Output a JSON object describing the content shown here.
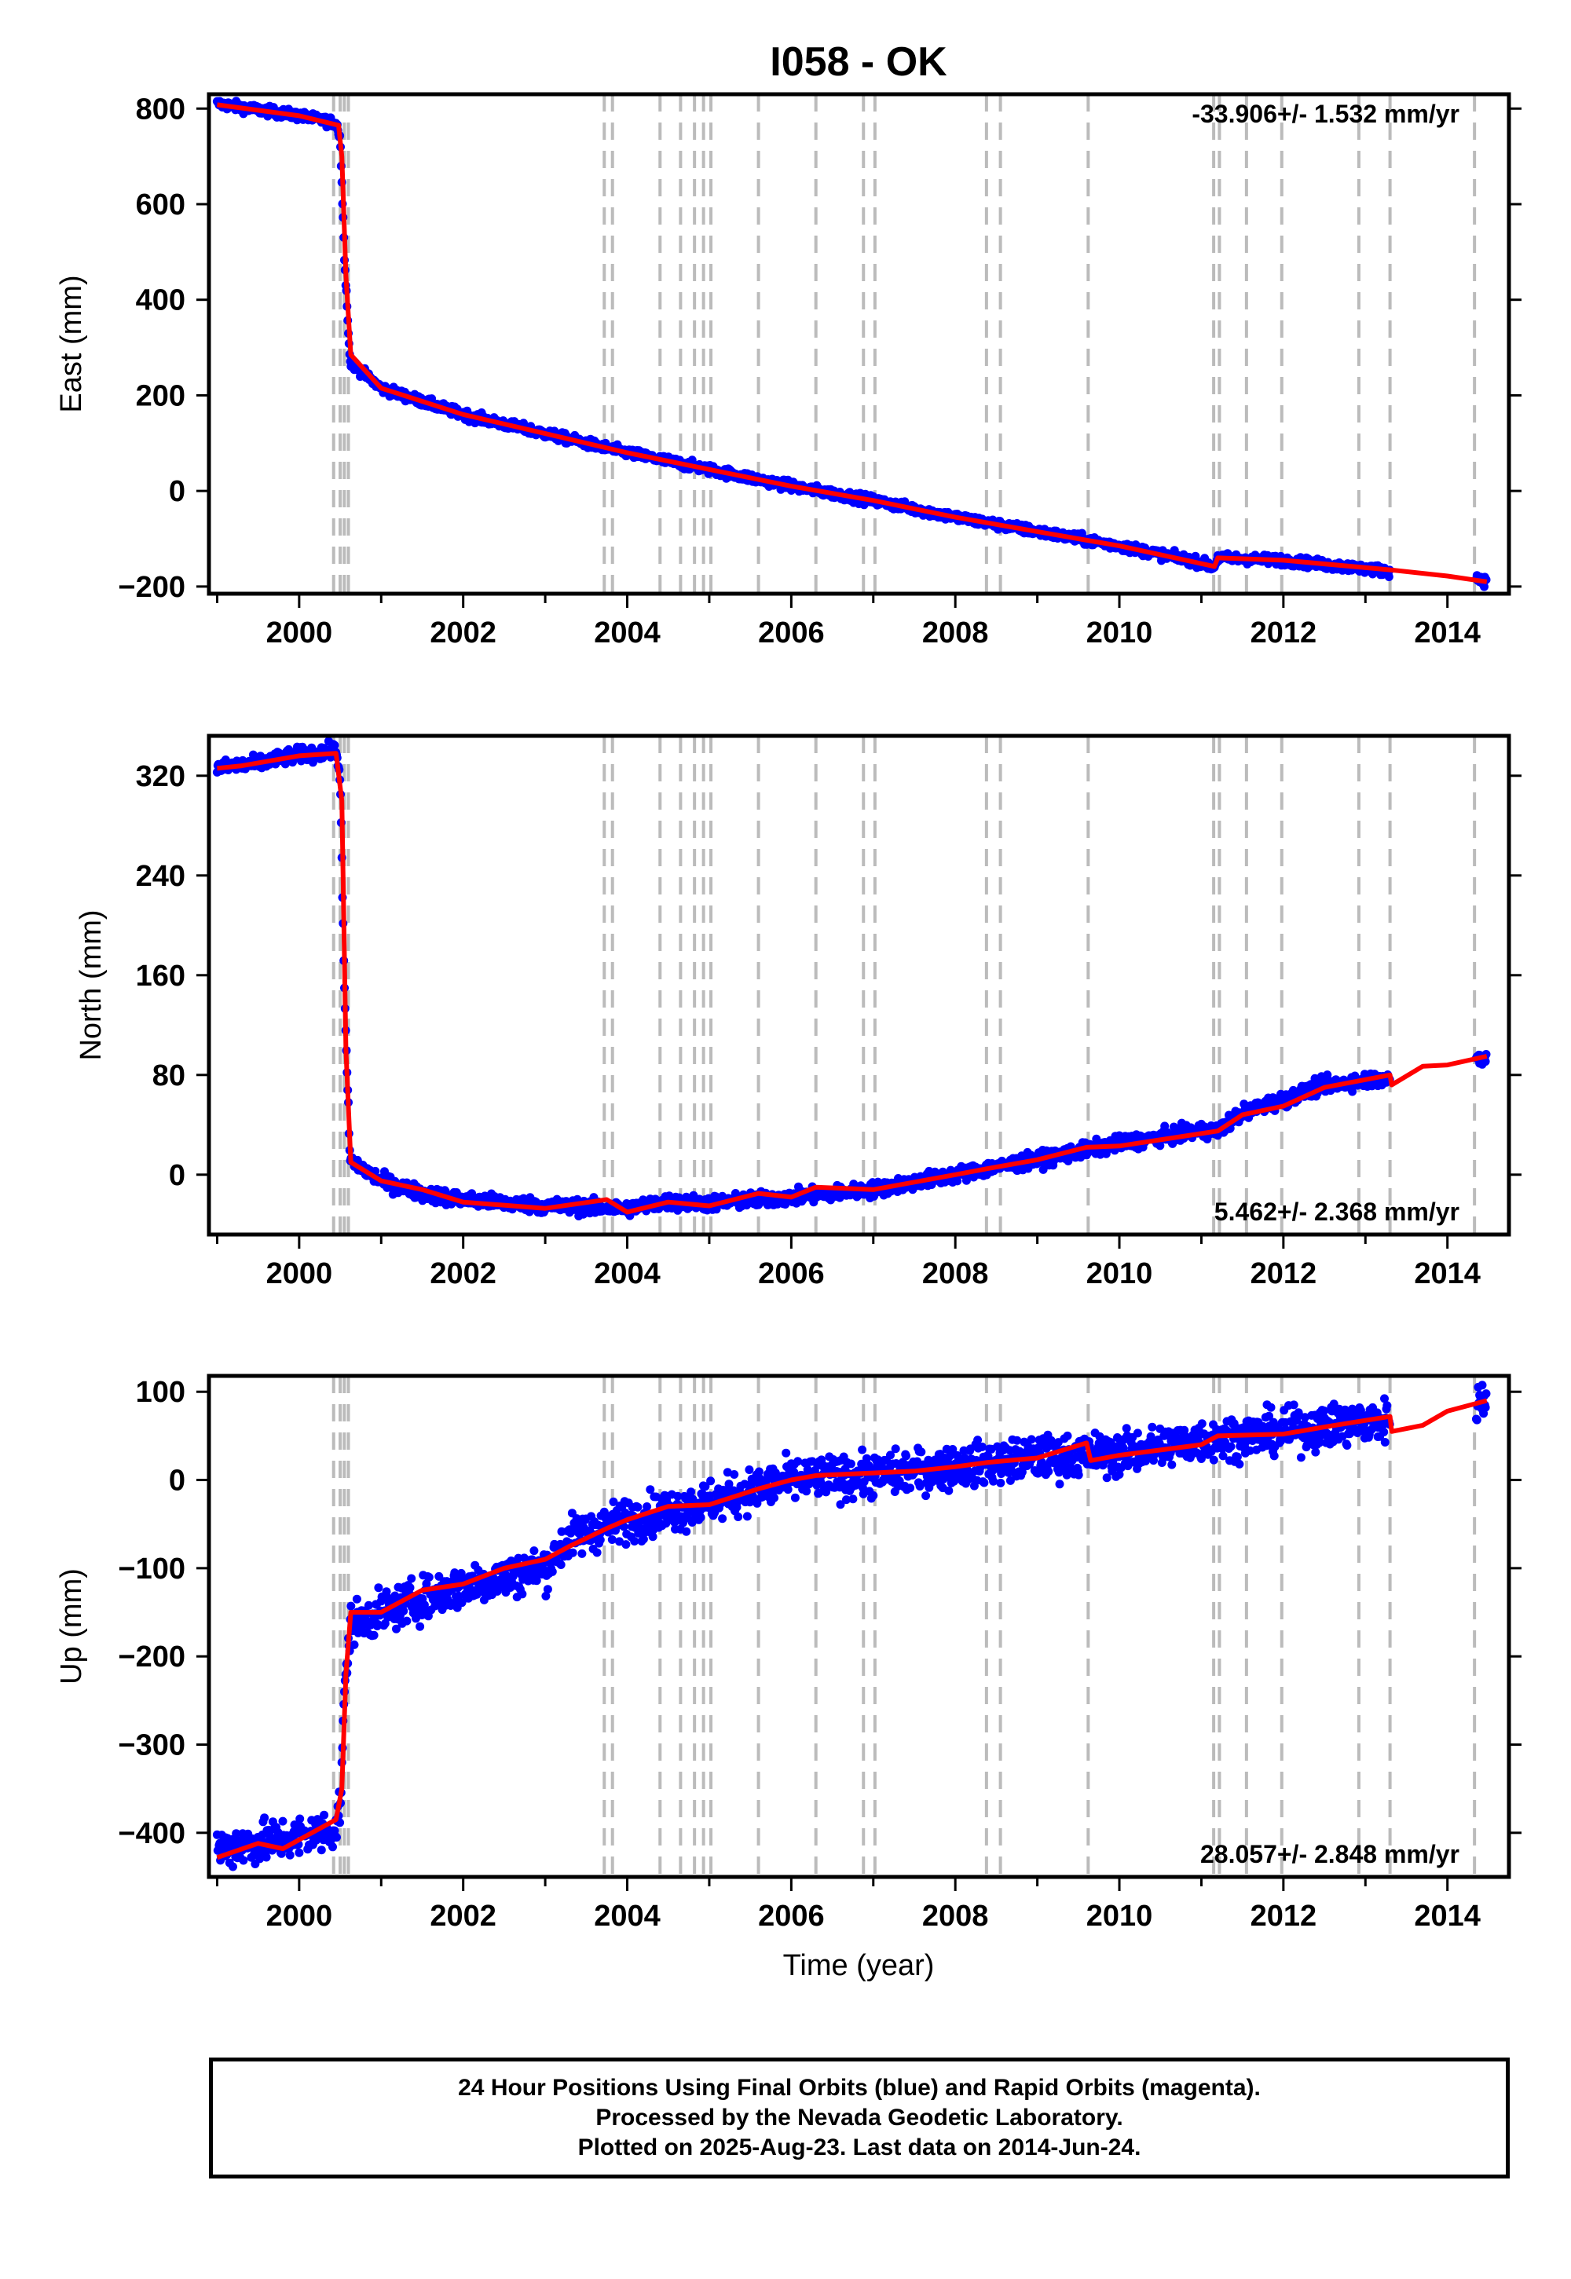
{
  "figure": {
    "title": "I058 - OK",
    "xlabel": "Time (year)",
    "caption": [
      "24 Hour Positions Using Final Orbits (blue) and Rapid Orbits (magenta).",
      "Processed by the Nevada Geodetic Laboratory.",
      "Plotted on 2025-Aug-23. Last data on 2014-Jun-24."
    ]
  },
  "colors": {
    "final_orbits": "#0000ff",
    "model": "#ff0000",
    "equipment_lines": "#bbbbbb",
    "axes": "#000000"
  },
  "chart_data": [
    {
      "type": "scatter",
      "component": "East",
      "ylabel": "East (mm)",
      "rate_label": "-33.906+/- 1.532 mm/yr",
      "rate_position": "top-right",
      "xlim": [
        1998.9,
        2014.75
      ],
      "ylim": [
        -215,
        830
      ],
      "xticks": [
        2000,
        2002,
        2004,
        2006,
        2008,
        2010,
        2012,
        2014
      ],
      "yticks": [
        -200,
        0,
        200,
        400,
        600,
        800
      ],
      "grid": false,
      "series": [
        {
          "kind": "observations",
          "color": "blue",
          "start": 1999.0,
          "end": 2014.48,
          "gaps": [
            [
              2013.3,
              2014.35
            ]
          ],
          "scatter_mm": 5,
          "points": [
            [
              1999.0,
              810
            ],
            [
              2000.0,
              785
            ],
            [
              2000.45,
              770
            ],
            [
              2000.5,
              740
            ],
            [
              2000.55,
              500
            ],
            [
              2000.62,
              270
            ],
            [
              2001.0,
              215
            ],
            [
              2002.0,
              160
            ],
            [
              2003.0,
              120
            ],
            [
              2004.0,
              80
            ],
            [
              2005.0,
              45
            ],
            [
              2006.0,
              10
            ],
            [
              2007.0,
              -20
            ],
            [
              2008.0,
              -55
            ],
            [
              2009.0,
              -85
            ],
            [
              2010.0,
              -115
            ],
            [
              2011.0,
              -150
            ],
            [
              2011.15,
              -160
            ],
            [
              2011.2,
              -140
            ],
            [
              2012.0,
              -145
            ],
            [
              2013.3,
              -168
            ],
            [
              2014.35,
              -183
            ],
            [
              2014.48,
              -190
            ]
          ]
        },
        {
          "kind": "model",
          "color": "red",
          "points": [
            [
              1999.0,
              808
            ],
            [
              2000.0,
              785
            ],
            [
              2000.48,
              765
            ],
            [
              2000.52,
              700
            ],
            [
              2000.57,
              450
            ],
            [
              2000.63,
              285
            ],
            [
              2001.0,
              215
            ],
            [
              2002.0,
              160
            ],
            [
              2003.0,
              120
            ],
            [
              2004.0,
              80
            ],
            [
              2005.0,
              45
            ],
            [
              2006.0,
              10
            ],
            [
              2007.0,
              -20
            ],
            [
              2008.0,
              -55
            ],
            [
              2009.0,
              -85
            ],
            [
              2010.0,
              -115
            ],
            [
              2011.16,
              -158
            ],
            [
              2011.2,
              -140
            ],
            [
              2012.0,
              -145
            ],
            [
              2013.3,
              -165
            ],
            [
              2014.0,
              -178
            ],
            [
              2014.48,
              -190
            ]
          ]
        }
      ]
    },
    {
      "type": "scatter",
      "component": "North",
      "ylabel": "North (mm)",
      "rate_label": "5.462+/- 2.368 mm/yr",
      "rate_position": "bottom-right",
      "xlim": [
        1998.9,
        2014.75
      ],
      "ylim": [
        -48,
        352
      ],
      "xticks": [
        2000,
        2002,
        2004,
        2006,
        2008,
        2010,
        2012,
        2014
      ],
      "yticks": [
        0,
        80,
        160,
        240,
        320
      ],
      "grid": false,
      "series": [
        {
          "kind": "observations",
          "color": "blue",
          "start": 1999.0,
          "end": 2014.48,
          "gaps": [
            [
              2013.3,
              2014.35
            ]
          ],
          "scatter_mm": 3,
          "points": [
            [
              1999.0,
              326
            ],
            [
              1999.5,
              330
            ],
            [
              2000.0,
              337
            ],
            [
              2000.45,
              340
            ],
            [
              2000.5,
              320
            ],
            [
              2000.55,
              150
            ],
            [
              2000.62,
              12
            ],
            [
              2001.0,
              -5
            ],
            [
              2001.5,
              -15
            ],
            [
              2002.0,
              -20
            ],
            [
              2003.0,
              -25
            ],
            [
              2004.0,
              -27
            ],
            [
              2004.5,
              -22
            ],
            [
              2005.0,
              -23
            ],
            [
              2006.0,
              -18
            ],
            [
              2007.0,
              -12
            ],
            [
              2008.0,
              0
            ],
            [
              2009.0,
              12
            ],
            [
              2010.0,
              25
            ],
            [
              2011.0,
              35
            ],
            [
              2011.2,
              35
            ],
            [
              2011.5,
              50
            ],
            [
              2012.0,
              60
            ],
            [
              2012.5,
              72
            ],
            [
              2013.3,
              78
            ],
            [
              2014.35,
              90
            ],
            [
              2014.48,
              95
            ]
          ]
        },
        {
          "kind": "model",
          "color": "red",
          "points": [
            [
              1999.0,
              326
            ],
            [
              1999.3,
              328
            ],
            [
              2000.0,
              336
            ],
            [
              2000.45,
              338
            ],
            [
              2000.52,
              300
            ],
            [
              2000.57,
              100
            ],
            [
              2000.63,
              10
            ],
            [
              2001.0,
              -5
            ],
            [
              2001.5,
              -12
            ],
            [
              2002.0,
              -22
            ],
            [
              2003.0,
              -27
            ],
            [
              2003.75,
              -20
            ],
            [
              2004.0,
              -30
            ],
            [
              2004.5,
              -22
            ],
            [
              2005.0,
              -25
            ],
            [
              2005.6,
              -15
            ],
            [
              2006.0,
              -18
            ],
            [
              2006.3,
              -10
            ],
            [
              2007.0,
              -12
            ],
            [
              2008.0,
              0
            ],
            [
              2008.4,
              5
            ],
            [
              2009.0,
              12
            ],
            [
              2009.6,
              22
            ],
            [
              2010.0,
              23
            ],
            [
              2011.2,
              35
            ],
            [
              2011.5,
              48
            ],
            [
              2012.0,
              55
            ],
            [
              2012.5,
              70
            ],
            [
              2013.3,
              80
            ],
            [
              2013.32,
              72
            ],
            [
              2013.7,
              87
            ],
            [
              2014.0,
              88
            ],
            [
              2014.48,
              95
            ]
          ]
        }
      ]
    },
    {
      "type": "scatter",
      "component": "Up",
      "ylabel": "Up (mm)",
      "rate_label": "28.057+/- 2.848 mm/yr",
      "rate_position": "bottom-right",
      "xlim": [
        1998.9,
        2014.75
      ],
      "ylim": [
        -450,
        118
      ],
      "xticks": [
        2000,
        2002,
        2004,
        2006,
        2008,
        2010,
        2012,
        2014
      ],
      "yticks": [
        -400,
        -300,
        -200,
        -100,
        0,
        100
      ],
      "grid": false,
      "series": [
        {
          "kind": "observations",
          "color": "blue",
          "start": 1999.0,
          "end": 2014.48,
          "gaps": [
            [
              2013.3,
              2014.35
            ]
          ],
          "scatter_mm": 12,
          "points": [
            [
              1999.0,
              -418
            ],
            [
              2000.0,
              -405
            ],
            [
              2000.45,
              -395
            ],
            [
              2000.5,
              -370
            ],
            [
              2000.55,
              -250
            ],
            [
              2000.62,
              -165
            ],
            [
              2001.0,
              -150
            ],
            [
              2002.0,
              -120
            ],
            [
              2003.0,
              -100
            ],
            [
              2003.3,
              -65
            ],
            [
              2004.0,
              -45
            ],
            [
              2005.0,
              -25
            ],
            [
              2006.0,
              0
            ],
            [
              2007.0,
              5
            ],
            [
              2008.0,
              15
            ],
            [
              2009.0,
              25
            ],
            [
              2010.0,
              30
            ],
            [
              2011.0,
              45
            ],
            [
              2012.0,
              55
            ],
            [
              2013.3,
              68
            ],
            [
              2014.35,
              88
            ],
            [
              2014.48,
              92
            ]
          ]
        },
        {
          "kind": "model",
          "color": "red",
          "points": [
            [
              1999.0,
              -428
            ],
            [
              1999.5,
              -412
            ],
            [
              1999.8,
              -418
            ],
            [
              2000.45,
              -385
            ],
            [
              2000.52,
              -350
            ],
            [
              2000.57,
              -220
            ],
            [
              2000.63,
              -150
            ],
            [
              2001.0,
              -150
            ],
            [
              2001.5,
              -125
            ],
            [
              2002.0,
              -118
            ],
            [
              2002.5,
              -100
            ],
            [
              2003.0,
              -90
            ],
            [
              2003.3,
              -75
            ],
            [
              2003.75,
              -55
            ],
            [
              2004.0,
              -45
            ],
            [
              2004.5,
              -30
            ],
            [
              2005.0,
              -28
            ],
            [
              2005.6,
              -10
            ],
            [
              2006.0,
              0
            ],
            [
              2006.3,
              5
            ],
            [
              2007.0,
              8
            ],
            [
              2007.5,
              10
            ],
            [
              2008.0,
              15
            ],
            [
              2008.4,
              20
            ],
            [
              2009.0,
              25
            ],
            [
              2009.6,
              42
            ],
            [
              2009.65,
              22
            ],
            [
              2010.0,
              28
            ],
            [
              2011.0,
              40
            ],
            [
              2011.2,
              50
            ],
            [
              2012.0,
              52
            ],
            [
              2012.5,
              60
            ],
            [
              2013.3,
              72
            ],
            [
              2013.32,
              55
            ],
            [
              2013.7,
              62
            ],
            [
              2014.0,
              78
            ],
            [
              2014.48,
              90
            ]
          ]
        }
      ]
    }
  ],
  "equipment_change_epochs": [
    2000.42,
    2000.5,
    2000.55,
    2000.6,
    2003.72,
    2003.82,
    2004.4,
    2004.65,
    2004.82,
    2004.93,
    2005.02,
    2005.6,
    2006.3,
    2006.88,
    2007.02,
    2008.38,
    2008.55,
    2009.62,
    2011.15,
    2011.22,
    2011.55,
    2011.98,
    2012.92,
    2013.3,
    2014.33
  ]
}
